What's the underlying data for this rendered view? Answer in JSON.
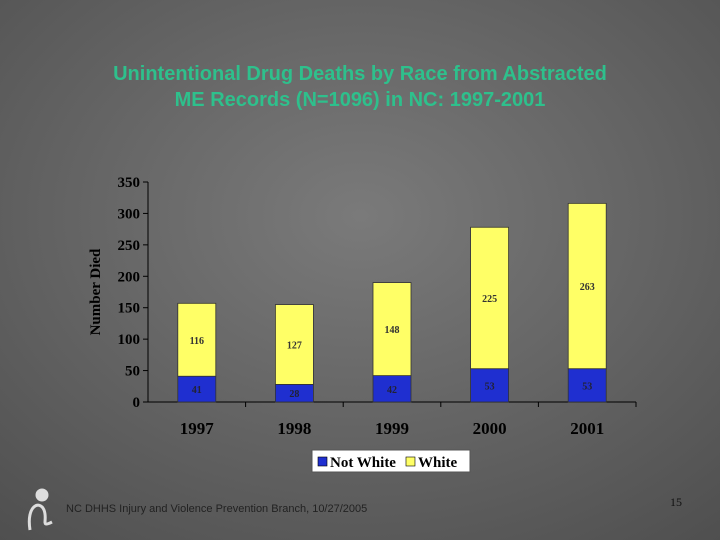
{
  "chart_data": {
    "type": "stacked-bar",
    "title": "Unintentional Drug Deaths by Race from Abstracted ME Records (N=1096) in NC: 1997-2001",
    "y_label": "Number Died",
    "categories": [
      "1997",
      "1998",
      "1999",
      "2000",
      "2001"
    ],
    "series": [
      {
        "name": "Not White",
        "color": "#1f2fd0",
        "values": [
          41,
          28,
          42,
          53,
          53
        ]
      },
      {
        "name": "White",
        "color": "#ffff66",
        "values": [
          116,
          127,
          148,
          225,
          263
        ]
      }
    ],
    "ylim": [
      0,
      350
    ],
    "yticks": [
      0,
      50,
      100,
      150,
      200,
      250,
      300,
      350
    ],
    "grid": false,
    "legend": "bottom"
  },
  "footer": "NC DHHS Injury and Violence Prevention Branch, 10/27/2005",
  "page_number": "15"
}
